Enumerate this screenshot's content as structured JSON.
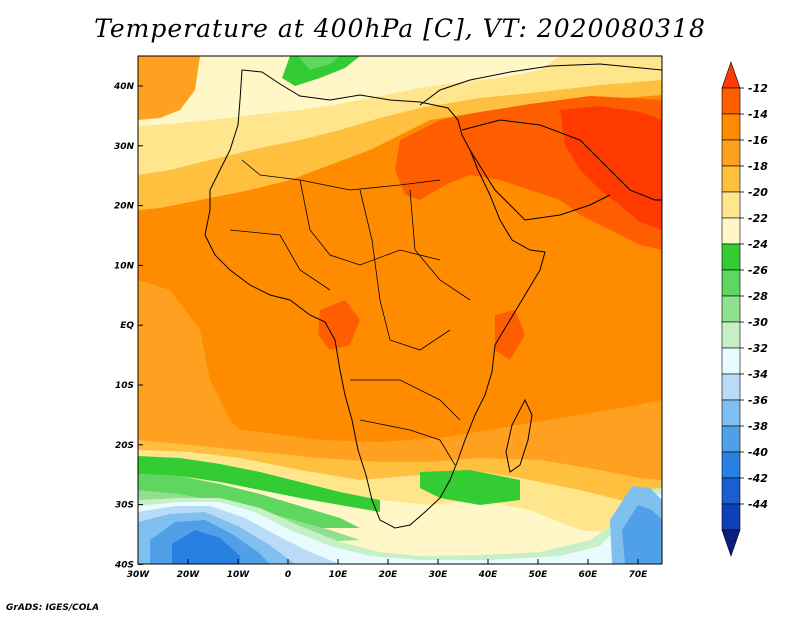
{
  "title": "Temperature at 400hPa [C], VT: 2020080318",
  "credit": "GrADS: IGES/COLA",
  "map": {
    "lon_labels": [
      "30W",
      "20W",
      "10W",
      "0",
      "10E",
      "20E",
      "30E",
      "40E",
      "50E",
      "60E",
      "70E"
    ],
    "lat_labels": [
      "40N",
      "30N",
      "20N",
      "10N",
      "EQ",
      "10S",
      "20S",
      "30S",
      "40S"
    ]
  },
  "colorbar": {
    "labels": [
      "-12",
      "-14",
      "-16",
      "-18",
      "-20",
      "-22",
      "-24",
      "-26",
      "-28",
      "-30",
      "-32",
      "-34",
      "-36",
      "-38",
      "-40",
      "-42",
      "-44"
    ],
    "colors": [
      "#ff3a00",
      "#ff5e00",
      "#ff8c00",
      "#ffa020",
      "#ffc040",
      "#ffe58c",
      "#fff7c8",
      "#33cc33",
      "#5fd65f",
      "#8fe08f",
      "#c8f0c8",
      "#e8fcff",
      "#b8dcf8",
      "#80c0f0",
      "#50a0e8",
      "#2880e0",
      "#1a5ed0",
      "#1040b8",
      "#0a2080"
    ]
  }
}
